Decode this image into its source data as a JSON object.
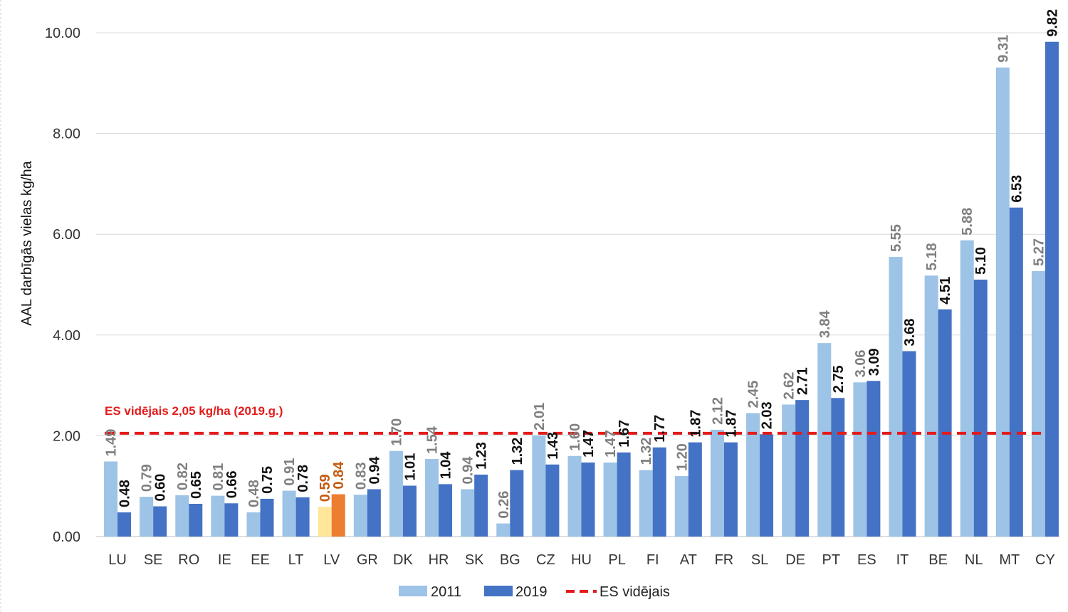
{
  "chart_data": {
    "type": "bar",
    "title": "",
    "xlabel": "",
    "ylabel": "AAL darbīgās vielas kg/ha",
    "ylim": [
      0,
      10
    ],
    "yticks": [
      "0.00",
      "2.00",
      "4.00",
      "6.00",
      "8.00",
      "10.00"
    ],
    "categories": [
      "LU",
      "SE",
      "RO",
      "IE",
      "EE",
      "LT",
      "LV",
      "GR",
      "DK",
      "HR",
      "SK",
      "BG",
      "CZ",
      "HU",
      "PL",
      "FI",
      "AT",
      "FR",
      "SL",
      "DE",
      "PT",
      "ES",
      "IT",
      "BE",
      "NL",
      "MT",
      "CY"
    ],
    "series": [
      {
        "name": "2011",
        "color": "#9dc3e6",
        "label_color": "#7f7f7f",
        "values": [
          1.49,
          0.79,
          0.82,
          0.81,
          0.48,
          0.91,
          0.59,
          0.83,
          1.7,
          1.54,
          0.94,
          0.26,
          2.01,
          1.6,
          1.47,
          1.32,
          1.2,
          2.12,
          2.45,
          2.62,
          3.84,
          3.06,
          5.55,
          5.18,
          5.88,
          9.31,
          5.27
        ],
        "labels": [
          "1.49",
          "0.79",
          "0.82",
          "0.81",
          "0.48",
          "0.91",
          "0.59",
          "0.83",
          "1.70",
          "1.54",
          "0.94",
          "0.26",
          "2.01",
          "1.60",
          "1.47",
          "1.32",
          "1.20",
          "2.12",
          "2.45",
          "2.62",
          "3.84",
          "3.06",
          "5.55",
          "5.18",
          "5.88",
          "9.31",
          "5.27"
        ]
      },
      {
        "name": "2019",
        "color": "#4472c4",
        "label_color": "#111111",
        "values": [
          0.48,
          0.6,
          0.65,
          0.66,
          0.75,
          0.78,
          0.84,
          0.94,
          1.01,
          1.04,
          1.23,
          1.32,
          1.43,
          1.47,
          1.67,
          1.77,
          1.87,
          1.87,
          2.03,
          2.71,
          2.75,
          3.09,
          3.68,
          4.51,
          5.1,
          6.53,
          9.82
        ],
        "labels": [
          "0.48",
          "0.60",
          "0.65",
          "0.66",
          "0.75",
          "0.78",
          "0.84",
          "0.94",
          "1.01",
          "1.04",
          "1.23",
          "1.32",
          "1.43",
          "1.47",
          "1.67",
          "1.77",
          "1.87",
          "1.87",
          "2.03",
          "2.71",
          "2.75",
          "3.09",
          "3.68",
          "4.51",
          "5.10",
          "6.53",
          "9.82"
        ]
      }
    ],
    "highlight": {
      "category": "LV",
      "color_2011": "#ffe699",
      "color_2019": "#ed7d31",
      "label_color": "#c55a11"
    },
    "reference_line": {
      "name": "ES vidējais",
      "value": 2.05,
      "color": "#e31b1b",
      "style": "dashed",
      "annotation": "ES vidējais 2,05 kg/ha (2019.g.)"
    },
    "legend": {
      "position": "bottom-center",
      "entries": [
        "2011",
        "2019",
        "ES vidējais"
      ]
    },
    "grid": true
  }
}
